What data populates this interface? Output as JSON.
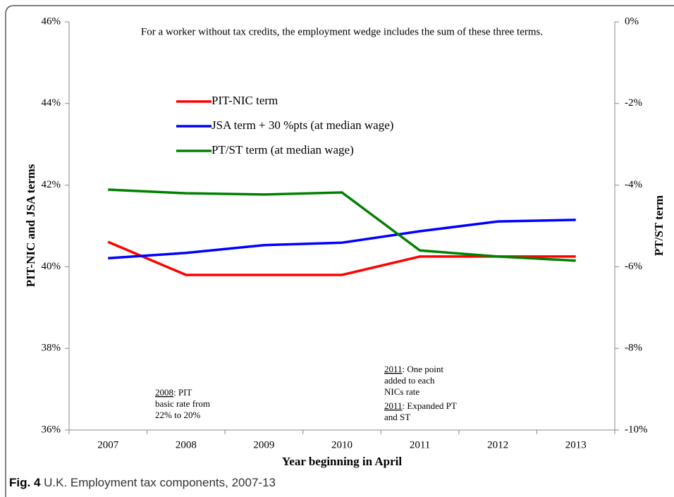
{
  "chart_data": {
    "type": "line",
    "title": "For a worker without tax credits, the employment wedge includes the sum of these three terms.",
    "xlabel": "Year beginning in April",
    "ylabel": "PIT-NIC and JSA terms",
    "y2label": "PT/ST term",
    "categories": [
      "2007",
      "2008",
      "2009",
      "2010",
      "2011",
      "2012",
      "2013"
    ],
    "series": [
      {
        "name": "PIT-NIC term",
        "color": "#ff0000",
        "values": [
          40.61,
          39.8,
          39.8,
          39.8,
          40.25,
          40.25,
          40.25
        ]
      },
      {
        "name": "JSA term + 30 %pts (at median wage)",
        "color": "#0000ff",
        "values": [
          40.21,
          40.34,
          40.53,
          40.59,
          40.87,
          41.11,
          41.15
        ]
      },
      {
        "name": "PT/ST term (at median wage)",
        "color": "#008000",
        "axis": "y2",
        "values": [
          -4.11,
          -4.2,
          -4.23,
          -4.18,
          -5.6,
          -5.75,
          -5.85
        ]
      }
    ],
    "ylim": [
      36,
      46
    ],
    "yticks": [
      {
        "value": 36,
        "label": "36%"
      },
      {
        "value": 38,
        "label": "38%"
      },
      {
        "value": 40,
        "label": "40%"
      },
      {
        "value": 42,
        "label": "42%"
      },
      {
        "value": 44,
        "label": "44%"
      },
      {
        "value": 46,
        "label": "46%"
      }
    ],
    "y2lim": [
      -10,
      0
    ],
    "y2ticks": [
      {
        "value": -10,
        "label": "-10%"
      },
      {
        "value": -8,
        "label": "-8%"
      },
      {
        "value": -6,
        "label": "-6%"
      },
      {
        "value": -4,
        "label": "-4%"
      },
      {
        "value": -2,
        "label": "-2%"
      },
      {
        "value": 0,
        "label": "0%"
      }
    ],
    "legend": "upper left",
    "annotations": [
      {
        "year": "2008",
        "lines": [
          ": PIT",
          "basic rate from",
          "22% to 20%"
        ]
      },
      {
        "year": "2011",
        "lines": [
          ": One point",
          "added to each",
          "NICs rate"
        ]
      },
      {
        "year": "2011",
        "lines": [
          ": Expanded PT",
          "and ST"
        ]
      }
    ]
  },
  "caption": {
    "label": "Fig. 4",
    "text": "U.K. Employment tax components, 2007-13"
  }
}
